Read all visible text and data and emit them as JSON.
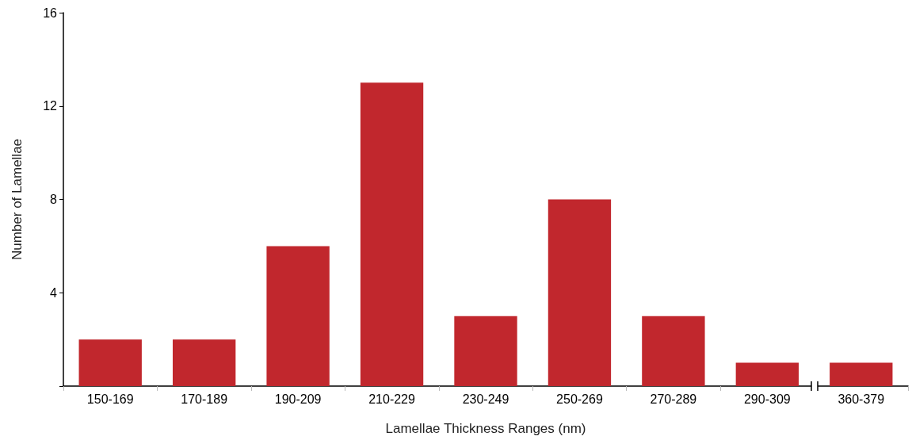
{
  "chart_data": {
    "type": "bar",
    "xlabel": "Lamellae Thickness Ranges (nm)",
    "ylabel": "Number of Lamellae",
    "categories": [
      "150-169",
      "170-189",
      "190-209",
      "210-229",
      "230-249",
      "250-269",
      "270-289",
      "290-309",
      "360-379"
    ],
    "values": [
      2,
      2,
      6,
      13,
      3,
      8,
      3,
      1,
      1
    ],
    "color": "#c1272d",
    "ylim": [
      0,
      16
    ],
    "yticks": [
      {
        "value": 0,
        "label": null
      },
      4,
      8,
      12,
      16
    ],
    "grid": false
  }
}
